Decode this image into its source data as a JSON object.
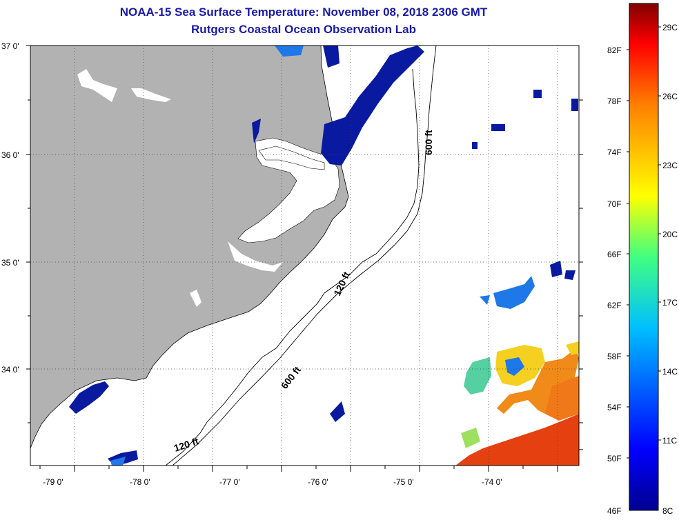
{
  "title": "NOAA-15 Sea Surface Temperature:  November 08, 2018 2306 GMT",
  "subtitle": "Rutgers Coastal Ocean Observation Lab",
  "lat_labels": [
    "37 0'",
    "36 0'",
    "35 0'",
    "34 0'"
  ],
  "lon_labels": [
    "-79 0'",
    "-78 0'",
    "-77 0'",
    "-76 0'",
    "-75 0'",
    "-74 0'"
  ],
  "contour_labels": [
    "600 ft",
    "120 ft",
    "600 ft",
    "120 ft"
  ],
  "colorbar": {
    "fahrenheit": [
      "82F",
      "78F",
      "74F",
      "70F",
      "66F",
      "62F",
      "58F",
      "54F",
      "50F",
      "46F"
    ],
    "celsius": [
      "29C",
      "26C",
      "23C",
      "20C",
      "17C",
      "14C",
      "11C",
      "8C"
    ]
  },
  "colors": {
    "land": "#b2b2b2",
    "title": "#1a1aa8",
    "cold": "#0a1aa0",
    "warm": "#e8400a"
  }
}
